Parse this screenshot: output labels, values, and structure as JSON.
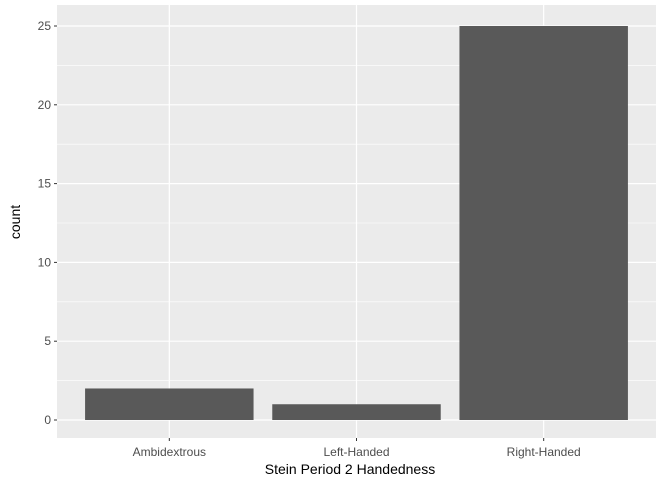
{
  "chart_data": {
    "type": "bar",
    "categories": [
      "Ambidextrous",
      "Left-Handed",
      "Right-Handed"
    ],
    "values": [
      2,
      1,
      25
    ],
    "xlabel": "Stein Period 2 Handedness",
    "ylabel": "count",
    "ylim": [
      0,
      25
    ],
    "yticks": [
      0,
      5,
      10,
      15,
      20,
      25
    ],
    "grid": true,
    "colors": {
      "panel_background": "#ebebeb",
      "grid_major": "#ffffff",
      "bar_fill": "#595959",
      "tick_text": "#4d4d4d",
      "axis_title": "#000000"
    }
  }
}
